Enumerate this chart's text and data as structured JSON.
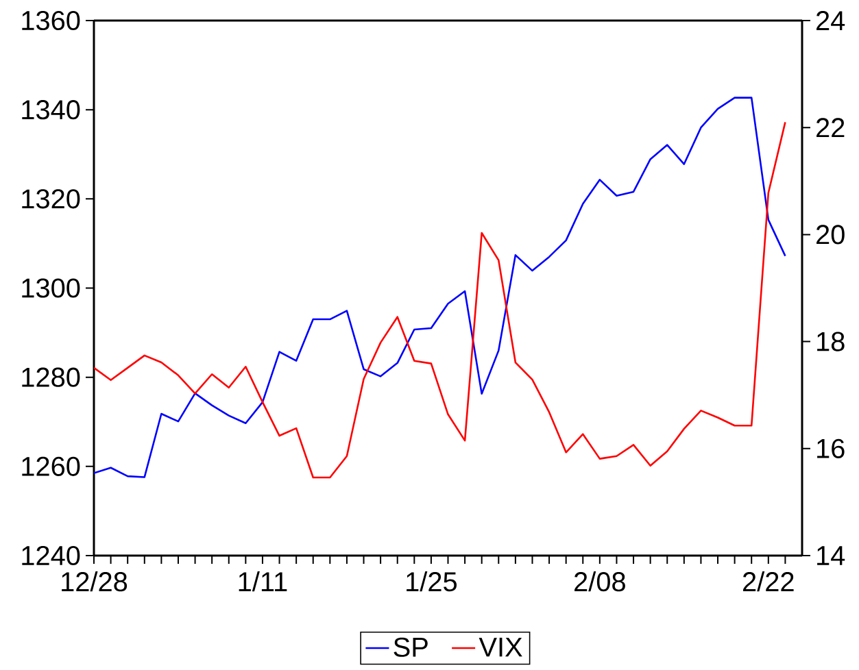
{
  "chart_data": {
    "type": "line",
    "categories": [
      "12/28",
      null,
      null,
      null,
      null,
      null,
      null,
      null,
      null,
      null,
      "1/11",
      null,
      null,
      null,
      null,
      null,
      null,
      null,
      null,
      null,
      "1/25",
      null,
      null,
      null,
      null,
      null,
      null,
      null,
      null,
      null,
      "2/08",
      null,
      null,
      null,
      null,
      null,
      null,
      null,
      null,
      null,
      "2/22",
      null
    ],
    "series": [
      {
        "name": "SP",
        "color": "#0000ff",
        "values": [
          1258.5,
          1259.7,
          1257.8,
          1257.6,
          1271.8,
          1270.1,
          1276.4,
          1273.7,
          1271.4,
          1269.7,
          1274.4,
          1285.7,
          1283.7,
          1293.0,
          1293.0,
          1294.9,
          1281.8,
          1280.2,
          1283.2,
          1290.7,
          1291.0,
          1296.5,
          1299.3,
          1276.3,
          1286.0,
          1307.4,
          1303.9,
          1307.0,
          1310.7,
          1318.9,
          1324.3,
          1320.7,
          1321.6,
          1328.9,
          1332.1,
          1327.8,
          1336.0,
          1340.2,
          1342.7,
          1342.7,
          1315.3,
          1307.2
        ]
      },
      {
        "name": "VIX",
        "color": "#ff0000",
        "axis": "y2",
        "values": [
          17.51,
          17.28,
          17.51,
          17.74,
          17.61,
          17.37,
          17.03,
          17.39,
          17.14,
          17.53,
          16.87,
          16.24,
          16.38,
          15.46,
          15.46,
          15.86,
          17.3,
          17.98,
          18.46,
          17.64,
          17.59,
          16.64,
          16.15,
          20.03,
          19.52,
          17.61,
          17.29,
          16.68,
          15.93,
          16.27,
          15.81,
          15.86,
          16.07,
          15.68,
          15.95,
          16.37,
          16.71,
          16.58,
          16.43,
          16.43,
          20.78,
          22.1
        ]
      }
    ],
    "ylim": [
      1240,
      1360
    ],
    "yticks": [
      1240,
      1260,
      1280,
      1300,
      1320,
      1340,
      1360
    ],
    "y2lim": [
      14,
      24
    ],
    "y2ticks": [
      14,
      16,
      18,
      20,
      22,
      24
    ],
    "grid": false,
    "legend": "bottom",
    "marker": "none",
    "line_style": "solid"
  }
}
